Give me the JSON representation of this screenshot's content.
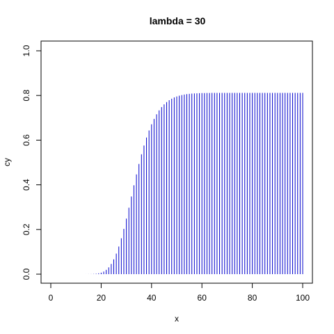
{
  "chart_data": {
    "type": "bar",
    "style": "histogram-lines",
    "title": "lambda = 30",
    "xlabel": "x",
    "ylabel": "cy",
    "xlim": [
      0,
      100
    ],
    "ylim": [
      0,
      1
    ],
    "x_ticks": [
      "0",
      "20",
      "40",
      "60",
      "80",
      "100"
    ],
    "y_ticks": [
      "0.0",
      "0.2",
      "0.4",
      "0.6",
      "0.8",
      "1.0"
    ],
    "line_color": "#0000cd",
    "grid": false,
    "x": [
      0,
      1,
      2,
      3,
      4,
      5,
      6,
      7,
      8,
      9,
      10,
      11,
      12,
      13,
      14,
      15,
      16,
      17,
      18,
      19,
      20,
      21,
      22,
      23,
      24,
      25,
      26,
      27,
      28,
      29,
      30,
      31,
      32,
      33,
      34,
      35,
      36,
      37,
      38,
      39,
      40,
      41,
      42,
      43,
      44,
      45,
      46,
      47,
      48,
      49,
      50,
      51,
      52,
      53,
      54,
      55,
      56,
      57,
      58,
      59,
      60,
      61,
      62,
      63,
      64,
      65,
      66,
      67,
      68,
      69,
      70,
      71,
      72,
      73,
      74,
      75,
      76,
      77,
      78,
      79,
      80,
      81,
      82,
      83,
      84,
      85,
      86,
      87,
      88,
      89,
      90,
      91,
      92,
      93,
      94,
      95,
      96,
      97,
      98,
      99,
      100
    ],
    "values": [
      0,
      0,
      0,
      0,
      0,
      0,
      0,
      0,
      0,
      0,
      0,
      0,
      0,
      0,
      0.0001,
      0.0002,
      0.0004,
      0.0009,
      0.0019,
      0.0037,
      0.0067,
      0.0116,
      0.0192,
      0.0303,
      0.0457,
      0.0661,
      0.092,
      0.1236,
      0.1607,
      0.2027,
      0.2487,
      0.2975,
      0.3477,
      0.3979,
      0.4468,
      0.4933,
      0.5366,
      0.5761,
      0.6117,
      0.6432,
      0.671,
      0.695,
      0.7157,
      0.7331,
      0.7479,
      0.7602,
      0.7704,
      0.7787,
      0.7855,
      0.7911,
      0.7955,
      0.7991,
      0.8019,
      0.8041,
      0.8059,
      0.8072,
      0.8083,
      0.8091,
      0.8097,
      0.8102,
      0.8106,
      0.8109,
      0.8111,
      0.8113,
      0.8114,
      0.8115,
      0.8116,
      0.8116,
      0.8117,
      0.8117,
      0.8117,
      0.8117,
      0.8117,
      0.8117,
      0.8117,
      0.8117,
      0.8117,
      0.8117,
      0.8117,
      0.8117,
      0.8117,
      0.8117,
      0.8117,
      0.8117,
      0.8117,
      0.8117,
      0.8117,
      0.8117,
      0.8117,
      0.8117,
      0.8117,
      0.8117,
      0.8117,
      0.8117,
      0.8117,
      0.8117,
      0.8117,
      0.8117,
      0.8117,
      0.8117,
      0.8117
    ]
  }
}
